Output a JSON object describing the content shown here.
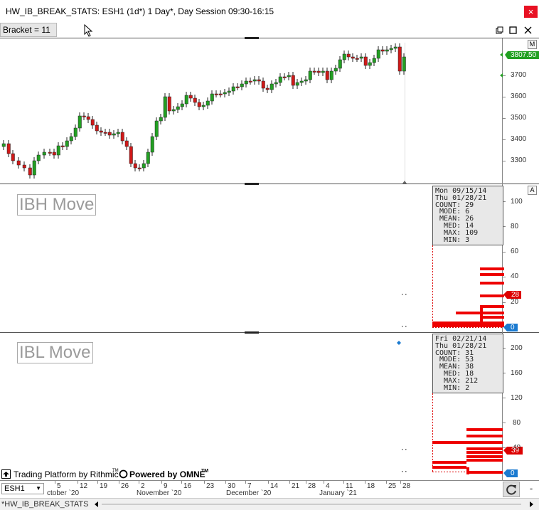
{
  "window": {
    "title": "HW_IB_BREAK_STATS: ESH1 (1d*) 1 Day*, Day Session 09:30-16:15",
    "close_glyph": "×"
  },
  "toolbar": {
    "bracket_label": "Bracket = 11"
  },
  "price_pane": {
    "button": "M",
    "y_ticks": [
      "3700",
      "3600",
      "3500",
      "3400",
      "3300"
    ],
    "last_price": "3807.50",
    "colors": {
      "up": "#22a022",
      "down": "#d01818",
      "tag": "#22a022"
    }
  },
  "ibh_pane": {
    "title": "IBH Move",
    "button": "A",
    "stats": {
      "date1": "Mon 09/15/14",
      "date2": "Thu 01/28/21",
      "count": "COUNT: 29",
      "mode": " MODE: 6",
      "mean": " MEAN: 26",
      "med": "  MED: 14",
      "max": "  MAX: 109",
      "min": "  MIN: 3"
    },
    "y_ticks": [
      "100",
      "80",
      "60",
      "40",
      "20"
    ],
    "tag_value": "28",
    "zero_tag": "0"
  },
  "ibl_pane": {
    "title": "IBL Move",
    "button": "A",
    "stats": {
      "date1": "Fri 02/21/14",
      "date2": "Thu 01/28/21",
      "count": "COUNT: 31",
      "mode": " MODE: 53",
      "mean": " MEAN: 38",
      "med": "  MED: 18",
      "max": "  MAX: 212",
      "min": "  MIN: 2"
    },
    "y_ticks": [
      "200",
      "160",
      "120",
      "80",
      "40"
    ],
    "tag_value": "39",
    "zero_tag": "0"
  },
  "footer": {
    "rithmic": "Trading Platform by Rithmic",
    "rithmic_tm": "TM",
    "omne": "Powered by OMNE",
    "omne_tm": "TM"
  },
  "x_axis": {
    "symbol": "ESH1",
    "ticks": [
      "5",
      "12",
      "19",
      "26",
      "2",
      "9",
      "16",
      "23",
      "30",
      "7",
      "14",
      "21",
      "28",
      "4",
      "11",
      "18",
      "25",
      "28"
    ],
    "months": [
      "ctober `20",
      "November `20",
      "December `20",
      "January `21"
    ]
  },
  "bottom_bar": {
    "sheet_tab": "*HW_IB_BREAK_STATS"
  }
}
